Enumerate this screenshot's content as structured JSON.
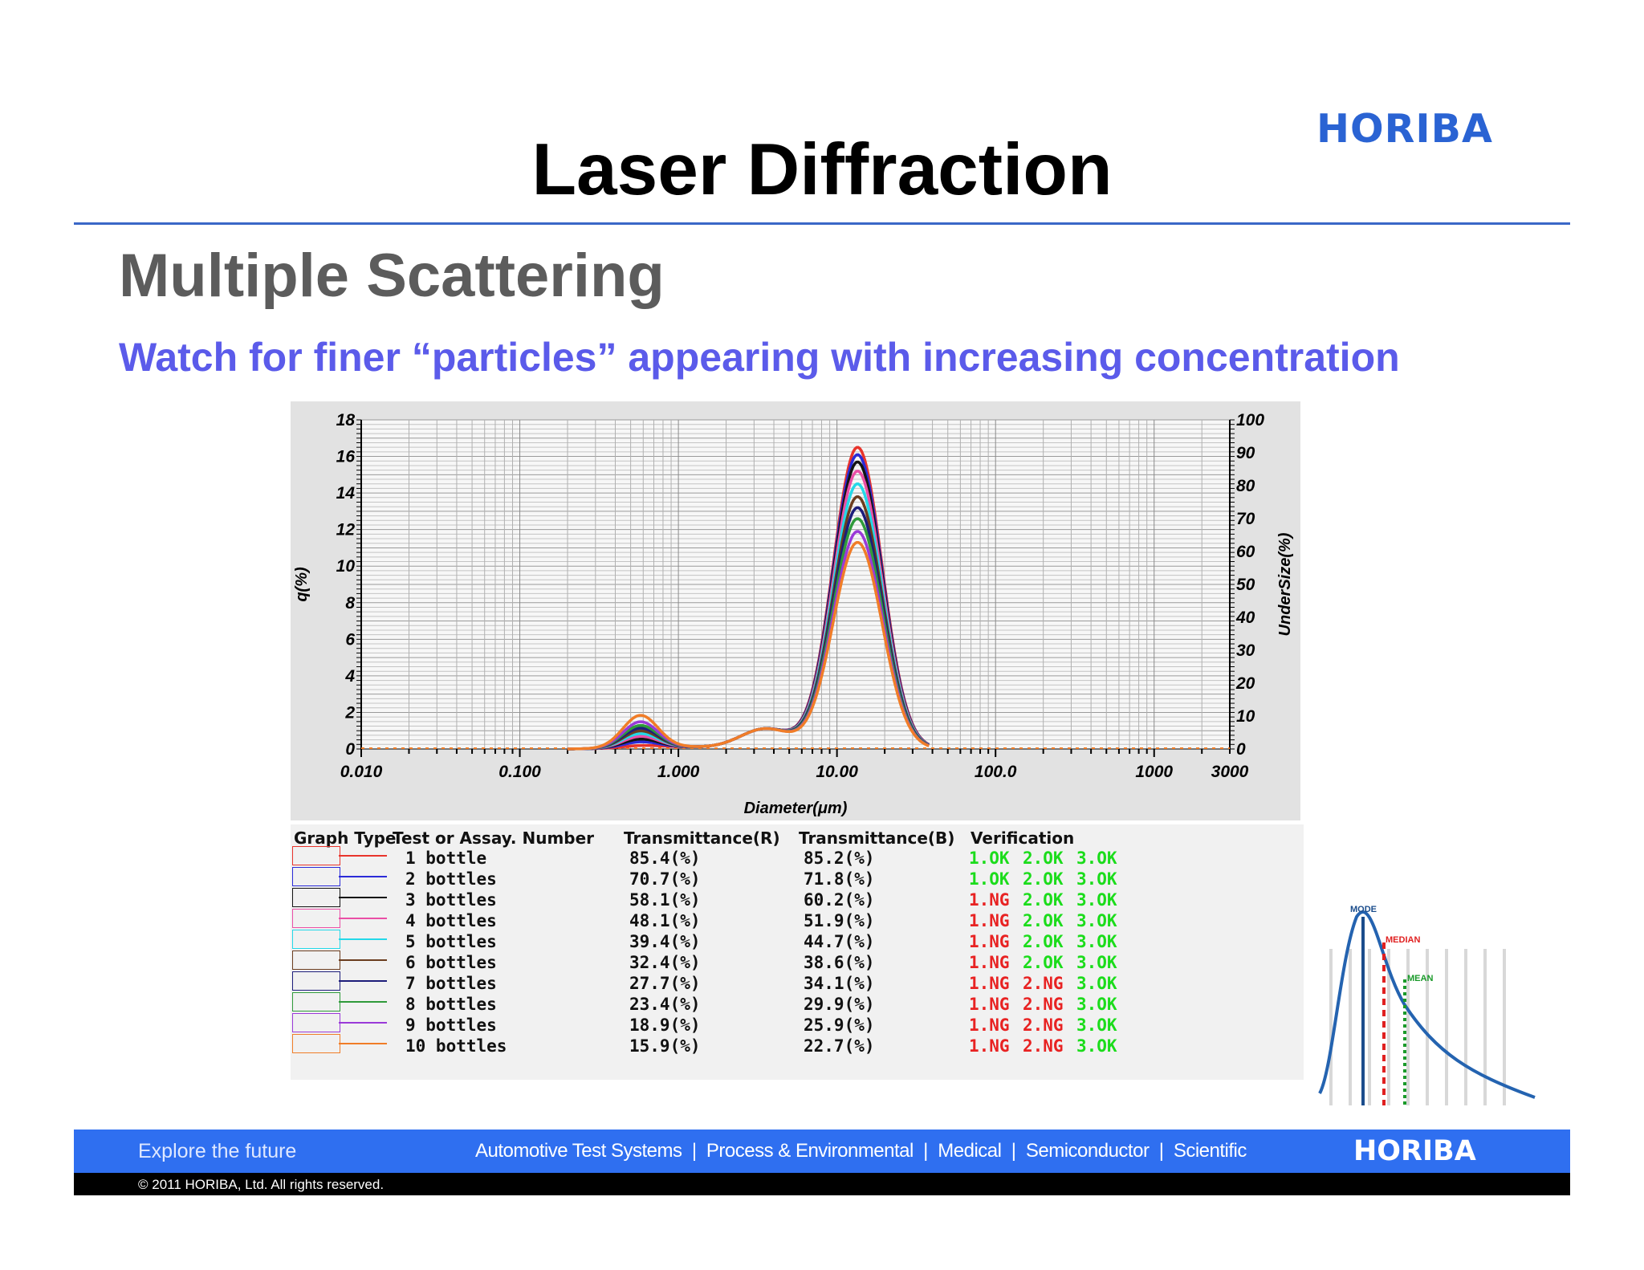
{
  "logo_top": "HORIBA",
  "title": "Laser Diffraction",
  "subtitle": "Multiple Scattering",
  "caption": "Watch for finer “particles” appearing with increasing concentration",
  "chart_data": {
    "type": "line",
    "xscale": "log",
    "xlim": [
      0.01,
      3000
    ],
    "ylim": [
      0,
      18
    ],
    "y2lim": [
      0,
      100
    ],
    "xlabel": "Diameter(μm)",
    "ylabel": "q(%)",
    "y2label": "UnderSize(%)",
    "x_ticks": [
      "0.010",
      "0.100",
      "1.000",
      "10.00",
      "100.0",
      "1000",
      "3000"
    ],
    "x_tick_values": [
      0.01,
      0.1,
      1,
      10,
      100,
      1000,
      3000
    ],
    "y_ticks": [
      "0",
      "2",
      "4",
      "6",
      "8",
      "10",
      "12",
      "14",
      "16",
      "18"
    ],
    "y2_ticks": [
      "0",
      "10",
      "20",
      "30",
      "40",
      "50",
      "60",
      "70",
      "80",
      "90",
      "100"
    ],
    "grid": true,
    "series": [
      {
        "name": "1 bottle",
        "color": "#e8342c",
        "peak": 16.5,
        "fine": 0.1
      },
      {
        "name": "2 bottles",
        "color": "#2b2bd8",
        "peak": 16.1,
        "fine": 0.3
      },
      {
        "name": "3 bottles",
        "color": "#141414",
        "peak": 15.7,
        "fine": 0.45
      },
      {
        "name": "4 bottles",
        "color": "#ea4fa6",
        "peak": 15.2,
        "fine": 0.6
      },
      {
        "name": "5 bottles",
        "color": "#24d8e8",
        "peak": 14.5,
        "fine": 0.75
      },
      {
        "name": "6 bottles",
        "color": "#6b3d1f",
        "peak": 13.8,
        "fine": 0.9
      },
      {
        "name": "7 bottles",
        "color": "#1d1d7a",
        "peak": 13.2,
        "fine": 1.05
      },
      {
        "name": "8 bottles",
        "color": "#2f9a3a",
        "peak": 12.6,
        "fine": 1.2
      },
      {
        "name": "9 bottles",
        "color": "#9a3ad8",
        "peak": 11.9,
        "fine": 1.4
      },
      {
        "name": "10 bottles",
        "color": "#f07d28",
        "peak": 11.3,
        "fine": 1.75
      }
    ]
  },
  "table": {
    "headers": [
      "Graph Type",
      "Test or Assay. Number",
      "Transmittance(R)",
      "Transmittance(B)",
      "Verification"
    ],
    "rows": [
      {
        "name": "1 bottle",
        "tr": "85.4(%)",
        "tb": "85.2(%)",
        "v1": "1.OK",
        "v2": "2.OK",
        "v3": "3.OK"
      },
      {
        "name": "2 bottles",
        "tr": "70.7(%)",
        "tb": "71.8(%)",
        "v1": "1.OK",
        "v2": "2.OK",
        "v3": "3.OK"
      },
      {
        "name": "3 bottles",
        "tr": "58.1(%)",
        "tb": "60.2(%)",
        "v1": "1.NG",
        "v2": "2.OK",
        "v3": "3.OK"
      },
      {
        "name": "4 bottles",
        "tr": "48.1(%)",
        "tb": "51.9(%)",
        "v1": "1.NG",
        "v2": "2.OK",
        "v3": "3.OK"
      },
      {
        "name": "5 bottles",
        "tr": "39.4(%)",
        "tb": "44.7(%)",
        "v1": "1.NG",
        "v2": "2.OK",
        "v3": "3.OK"
      },
      {
        "name": "6 bottles",
        "tr": "32.4(%)",
        "tb": "38.6(%)",
        "v1": "1.NG",
        "v2": "2.OK",
        "v3": "3.OK"
      },
      {
        "name": "7 bottles",
        "tr": "27.7(%)",
        "tb": "34.1(%)",
        "v1": "1.NG",
        "v2": "2.NG",
        "v3": "3.OK"
      },
      {
        "name": "8 bottles",
        "tr": "23.4(%)",
        "tb": "29.9(%)",
        "v1": "1.NG",
        "v2": "2.NG",
        "v3": "3.OK"
      },
      {
        "name": "9 bottles",
        "tr": "18.9(%)",
        "tb": "25.9(%)",
        "v1": "1.NG",
        "v2": "2.NG",
        "v3": "3.OK"
      },
      {
        "name": "10 bottles",
        "tr": "15.9(%)",
        "tb": "22.7(%)",
        "v1": "1.NG",
        "v2": "2.NG",
        "v3": "3.OK"
      }
    ],
    "ok_color": "#1bdc1b",
    "ng_color": "#e82222"
  },
  "inset": {
    "mode": "MODE",
    "median": "MEDIAN",
    "mean": "MEAN"
  },
  "footer": {
    "tagline": "Explore the future",
    "links": "Automotive Test Systems  |  Process & Environmental  |  Medical  |  Semiconductor  |  Scientific",
    "logo": "HORIBA",
    "copyright": "© 2011 HORIBA, Ltd. All rights reserved."
  }
}
